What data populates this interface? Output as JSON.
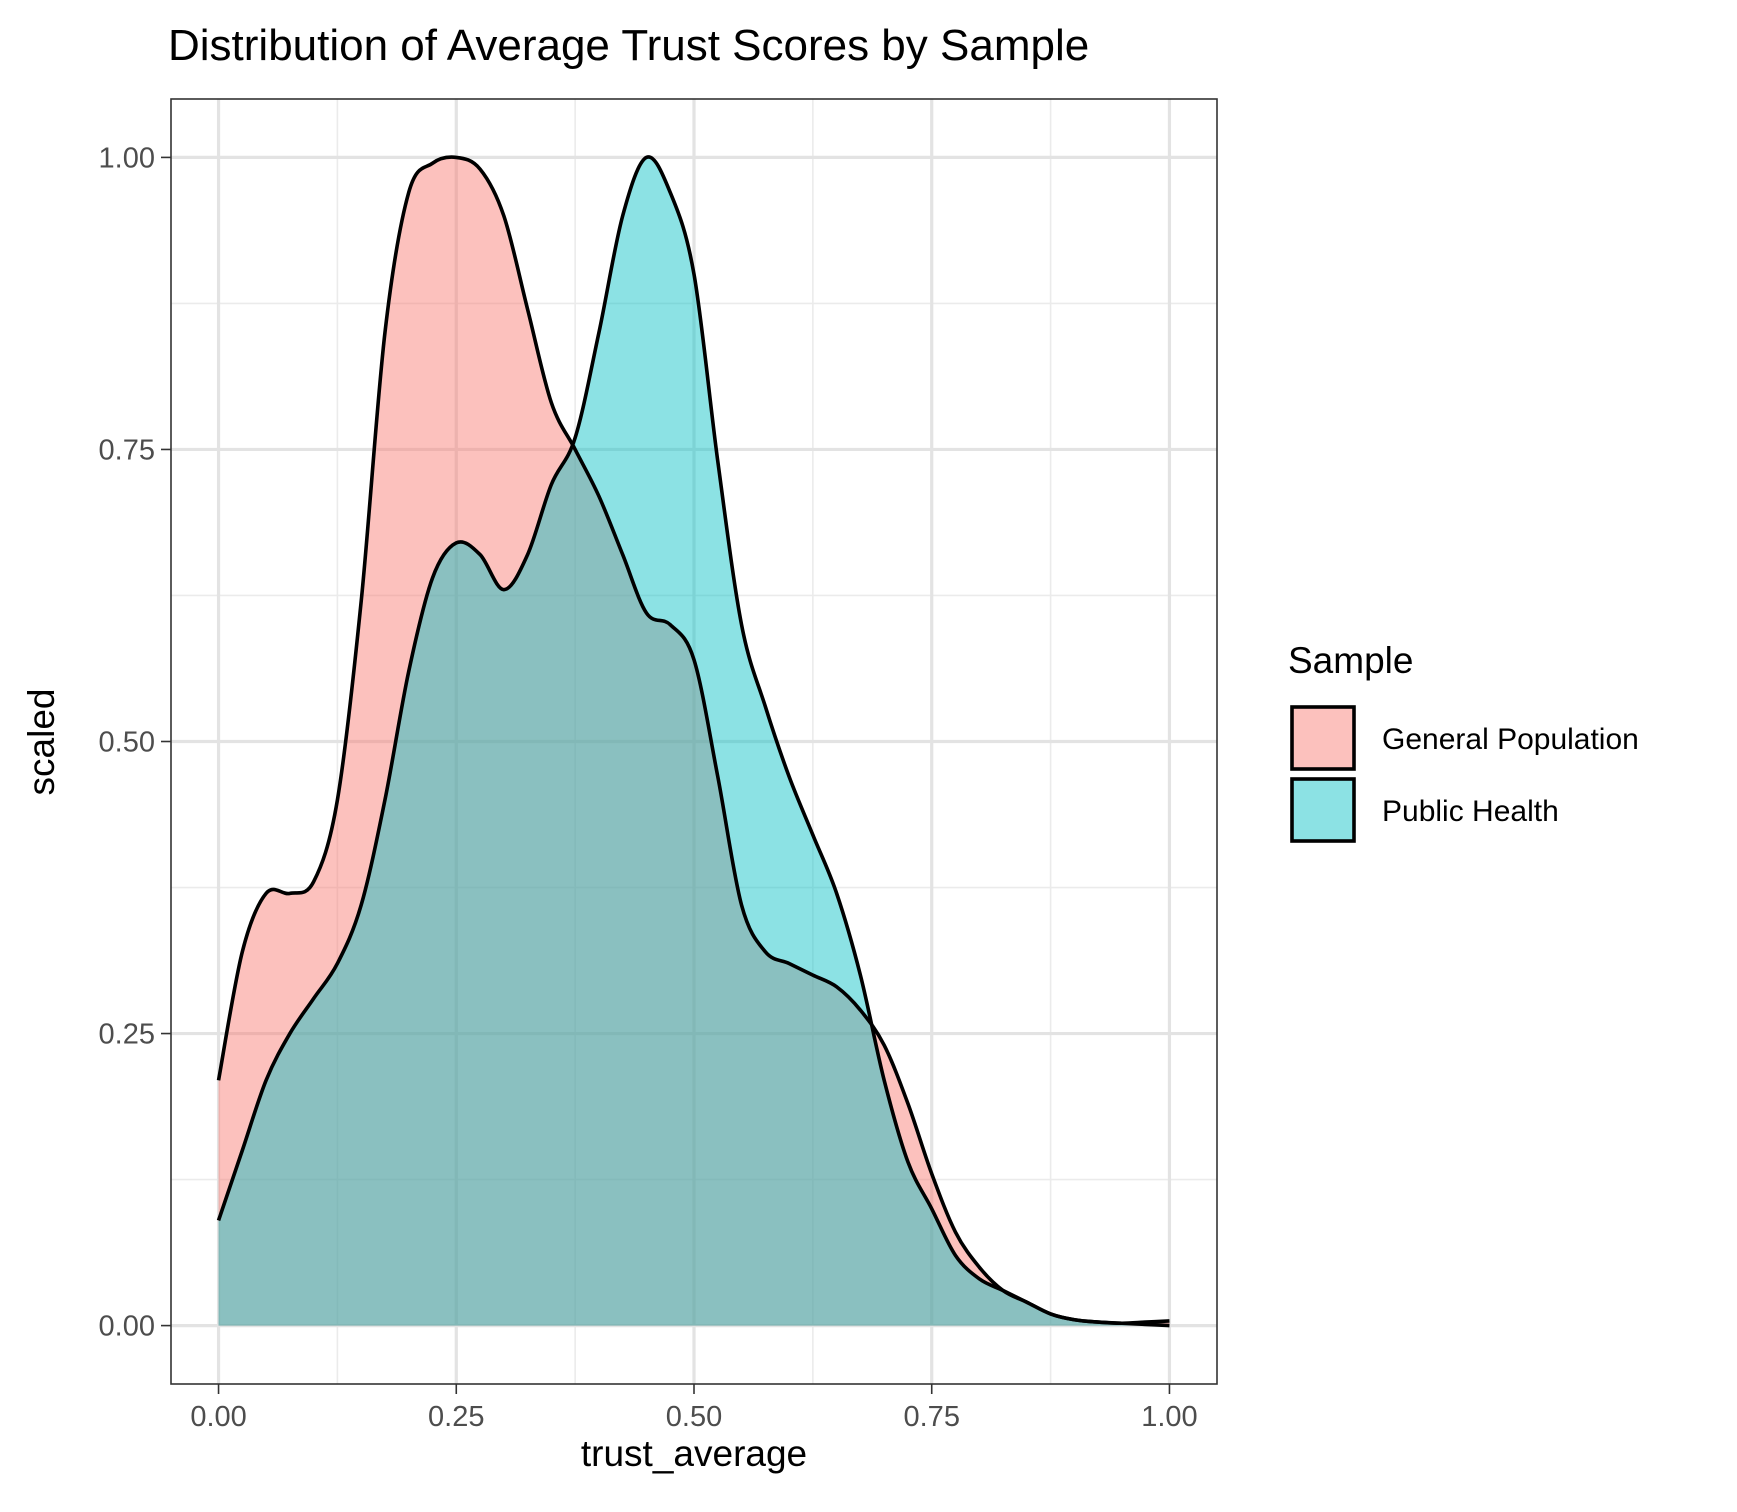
{
  "chart_data": {
    "type": "area",
    "title": "Distribution of Average Trust Scores by Sample",
    "xlabel": "trust_average",
    "ylabel": "scaled",
    "xlim": [
      -0.05,
      1.05
    ],
    "ylim": [
      -0.05,
      1.05
    ],
    "x_ticks": [
      0.0,
      0.25,
      0.5,
      0.75,
      1.0
    ],
    "x_tick_labels": [
      "0.00",
      "0.25",
      "0.50",
      "0.75",
      "1.00"
    ],
    "y_ticks": [
      0.0,
      0.25,
      0.5,
      0.75,
      1.0
    ],
    "y_tick_labels": [
      "0.00",
      "0.25",
      "0.50",
      "0.75",
      "1.00"
    ],
    "grid": true,
    "legend": {
      "title": "Sample",
      "position": "right"
    },
    "series": [
      {
        "name": "General Population",
        "color": "#F8766D",
        "x": [
          0.0,
          0.025,
          0.05,
          0.075,
          0.1,
          0.125,
          0.15,
          0.175,
          0.2,
          0.225,
          0.25,
          0.275,
          0.3,
          0.325,
          0.35,
          0.375,
          0.4,
          0.425,
          0.45,
          0.475,
          0.5,
          0.525,
          0.55,
          0.575,
          0.6,
          0.625,
          0.65,
          0.675,
          0.7,
          0.725,
          0.75,
          0.775,
          0.8,
          0.825,
          0.85,
          0.875,
          0.9,
          0.925,
          0.95,
          0.975,
          1.0
        ],
        "y": [
          0.21,
          0.32,
          0.37,
          0.37,
          0.38,
          0.45,
          0.62,
          0.85,
          0.97,
          0.995,
          1.0,
          0.99,
          0.95,
          0.87,
          0.79,
          0.75,
          0.71,
          0.66,
          0.61,
          0.6,
          0.57,
          0.47,
          0.36,
          0.32,
          0.31,
          0.3,
          0.29,
          0.27,
          0.24,
          0.19,
          0.13,
          0.08,
          0.05,
          0.03,
          0.02,
          0.01,
          0.005,
          0.003,
          0.002,
          0.003,
          0.004
        ]
      },
      {
        "name": "Public Health",
        "color": "#00BFC4",
        "x": [
          0.0,
          0.025,
          0.05,
          0.075,
          0.1,
          0.125,
          0.15,
          0.175,
          0.2,
          0.225,
          0.25,
          0.275,
          0.3,
          0.325,
          0.35,
          0.375,
          0.4,
          0.425,
          0.45,
          0.475,
          0.5,
          0.525,
          0.55,
          0.575,
          0.6,
          0.625,
          0.65,
          0.675,
          0.7,
          0.725,
          0.75,
          0.775,
          0.8,
          0.825,
          0.85,
          0.875,
          0.9,
          0.925,
          0.95,
          0.975,
          1.0
        ],
        "y": [
          0.09,
          0.15,
          0.21,
          0.25,
          0.28,
          0.31,
          0.36,
          0.45,
          0.56,
          0.64,
          0.67,
          0.66,
          0.63,
          0.66,
          0.72,
          0.76,
          0.85,
          0.95,
          1.0,
          0.97,
          0.9,
          0.74,
          0.6,
          0.53,
          0.47,
          0.42,
          0.37,
          0.3,
          0.21,
          0.14,
          0.1,
          0.06,
          0.04,
          0.03,
          0.02,
          0.01,
          0.005,
          0.003,
          0.002,
          0.001,
          0.0
        ]
      }
    ]
  }
}
